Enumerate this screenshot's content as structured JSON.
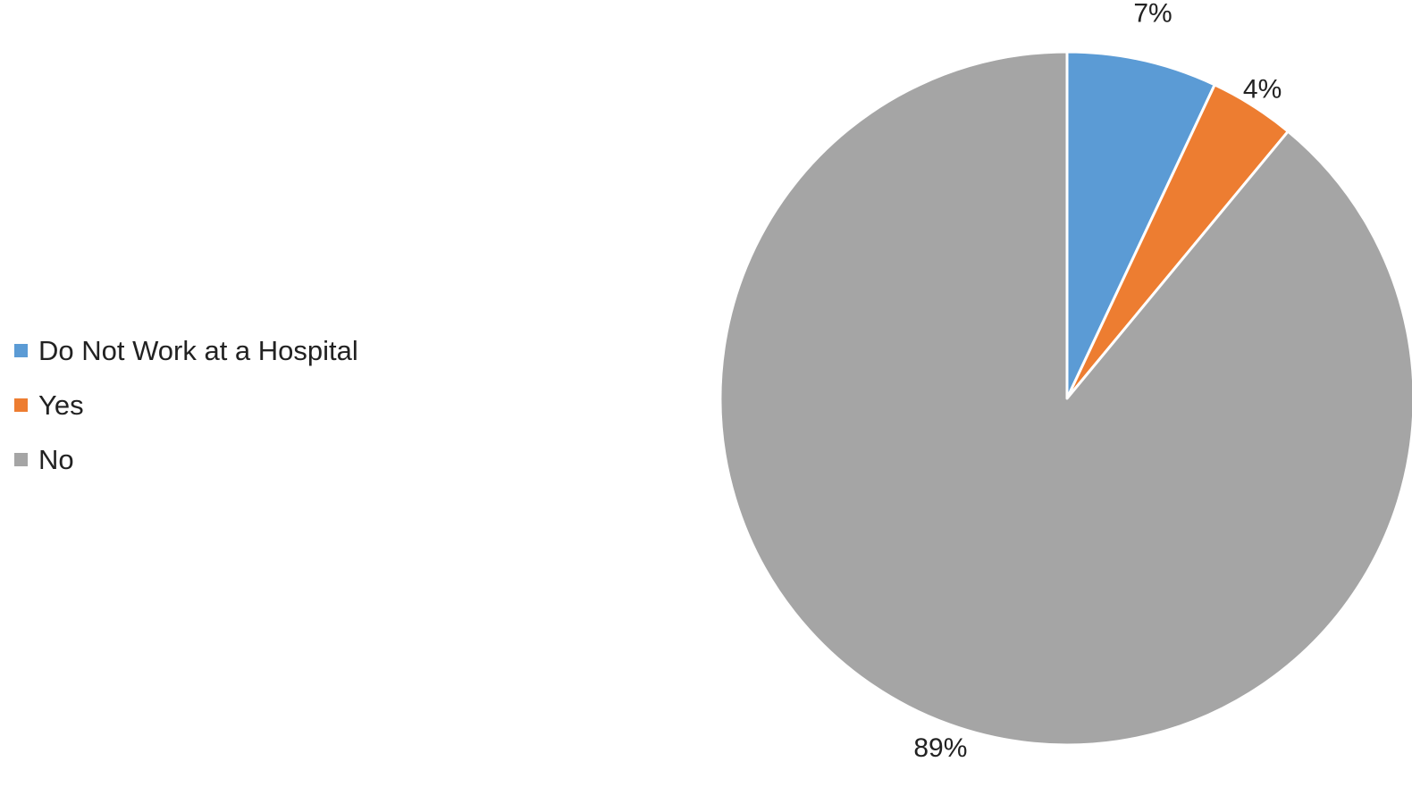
{
  "chart_data": {
    "type": "pie",
    "slices": [
      {
        "label": "Do Not Work at a Hospital",
        "value": 7,
        "display": "7%",
        "color": "#5b9bd5"
      },
      {
        "label": "Yes",
        "value": 4,
        "display": "4%",
        "color": "#ed7d31"
      },
      {
        "label": "No",
        "value": 89,
        "display": "89%",
        "color": "#a5a5a5"
      }
    ],
    "start_angle_deg": 0,
    "direction": "clockwise",
    "legend_position": "left",
    "title": ""
  }
}
